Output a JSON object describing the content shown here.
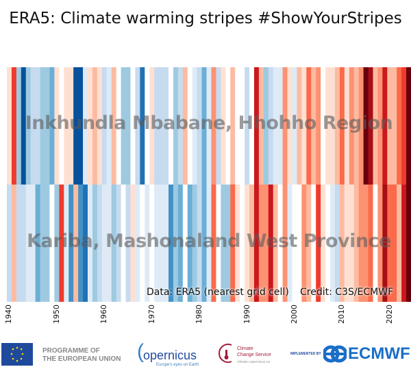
{
  "title": "ERA5: Climate warming stripes #ShowYourStripes",
  "chart_data": {
    "type": "heatmap",
    "title": "ERA5: Climate warming stripes #ShowYourStripes",
    "x_start": 1940,
    "x_end": 2024,
    "xticks": [
      "1940",
      "1950",
      "1960",
      "1970",
      "1980",
      "1990",
      "2000",
      "2010",
      "2020"
    ],
    "value_note": "Relative anomaly level (-7 coldest blue to 8 warmest dark red)",
    "palette": {
      "-7": "#08519c",
      "-6": "#2171b5",
      "-5": "#4292c6",
      "-4": "#6baed6",
      "-3": "#9ecae1",
      "-2": "#c6dbef",
      "-1": "#deebf7",
      "0": "#ffffff",
      "1": "#fee0d2",
      "2": "#fcbba1",
      "3": "#fc9272",
      "4": "#fb6a4a",
      "5": "#ef3b2c",
      "6": "#cb181d",
      "7": "#a50f15",
      "8": "#67000d"
    },
    "series": [
      {
        "name": "Inkhundla Mbabane, Hhohho Region",
        "values": [
          1,
          5,
          -3,
          -7,
          -3,
          -2,
          -2,
          -3,
          -3,
          -4,
          1,
          0,
          1,
          1,
          -7,
          -7,
          -1,
          1,
          2,
          1,
          -2,
          -1,
          2,
          0,
          -3,
          -3,
          0,
          -2,
          -6,
          0,
          1,
          -2,
          -2,
          -2,
          0,
          -3,
          -2,
          2,
          0,
          -1,
          -2,
          -4,
          -1,
          3,
          -2,
          1,
          0,
          2,
          0,
          0,
          -2,
          0,
          6,
          2,
          -3,
          -2,
          -1,
          -1,
          3,
          1,
          -1,
          2,
          1,
          4,
          2,
          3,
          0,
          1,
          1,
          2,
          4,
          1,
          3,
          2,
          3,
          8,
          7,
          2,
          3,
          6,
          2,
          2,
          4,
          5,
          8
        ]
      },
      {
        "name": "Kariba, Mashonaland West Province",
        "values": [
          -2,
          2,
          -2,
          -2,
          -1,
          -1,
          -4,
          -3,
          -3,
          0,
          -3,
          5,
          -1,
          -5,
          2,
          -5,
          -6,
          -1,
          -3,
          -2,
          -1,
          -1,
          -3,
          -2,
          0,
          -2,
          1,
          -1,
          0,
          -1,
          0,
          -1,
          -1,
          -1,
          -5,
          -3,
          -4,
          0,
          -4,
          -3,
          -2,
          -4,
          -1,
          4,
          0,
          -3,
          -3,
          4,
          1,
          0,
          1,
          2,
          6,
          3,
          3,
          6,
          2,
          0,
          3,
          -1,
          0,
          0,
          3,
          2,
          0,
          5,
          1,
          0,
          -1,
          -2,
          2,
          1,
          1,
          2,
          3,
          3,
          4,
          0,
          3,
          7,
          4,
          4,
          2,
          6,
          8
        ]
      }
    ]
  },
  "notes": {
    "data": "Data: ERA5 (nearest grid cell)",
    "credit": "Credit: C3S/ECMWF"
  },
  "footer": {
    "eu_line1": "PROGRAMME OF",
    "eu_line2": "THE EUROPEAN UNION",
    "copernicus": "opernicus",
    "copernicus_tag": "Europe's eyes on Earth",
    "c3s_line1": "Climate",
    "c3s_line2": "Change Service",
    "c3s_url": "climate.copernicus.eu",
    "implemented": "IMPLEMENTED BY",
    "ecmwf": "ECMWF"
  }
}
